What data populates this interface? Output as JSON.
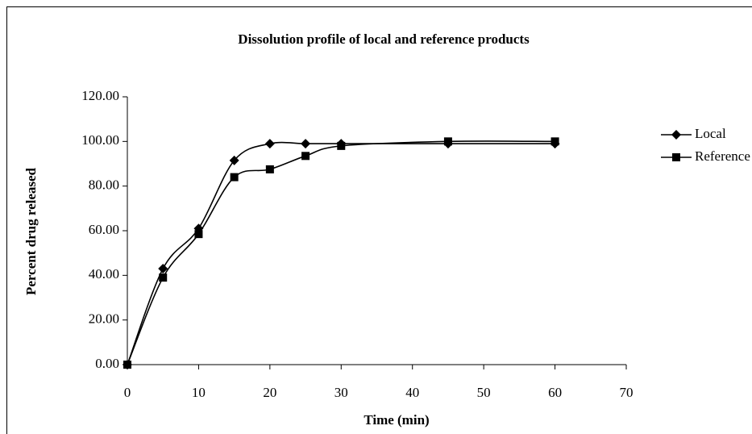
{
  "chart_data": {
    "type": "line",
    "title": "Dissolution profile of local and reference products",
    "x_label": "Time (min)",
    "y_label": "Percent drug released",
    "x": [
      0,
      5,
      10,
      15,
      20,
      25,
      30,
      45,
      60
    ],
    "series": [
      {
        "name": "Local",
        "color": "#000000",
        "marker": "diamond",
        "values": [
          0,
          43,
          61,
          91.5,
          99,
          99,
          99,
          99,
          99
        ]
      },
      {
        "name": "Reference",
        "color": "#000000",
        "marker": "square",
        "values": [
          0,
          39,
          58.5,
          84,
          87.5,
          93.5,
          98,
          100,
          100
        ]
      }
    ],
    "xlim": [
      0,
      70
    ],
    "xticks": [
      0,
      10,
      20,
      30,
      40,
      50,
      60,
      70
    ],
    "ylim": [
      0,
      120
    ],
    "yticks": [
      {
        "value": 0,
        "label": "0.00"
      },
      {
        "value": 20,
        "label": "20.00"
      },
      {
        "value": 40,
        "label": "40.00"
      },
      {
        "value": 60,
        "label": "60.00"
      },
      {
        "value": 80,
        "label": "80.00"
      },
      {
        "value": 100,
        "label": "100.00"
      },
      {
        "value": 120,
        "label": "120.00"
      }
    ],
    "smooth": true,
    "grid": false,
    "legend": "right"
  }
}
